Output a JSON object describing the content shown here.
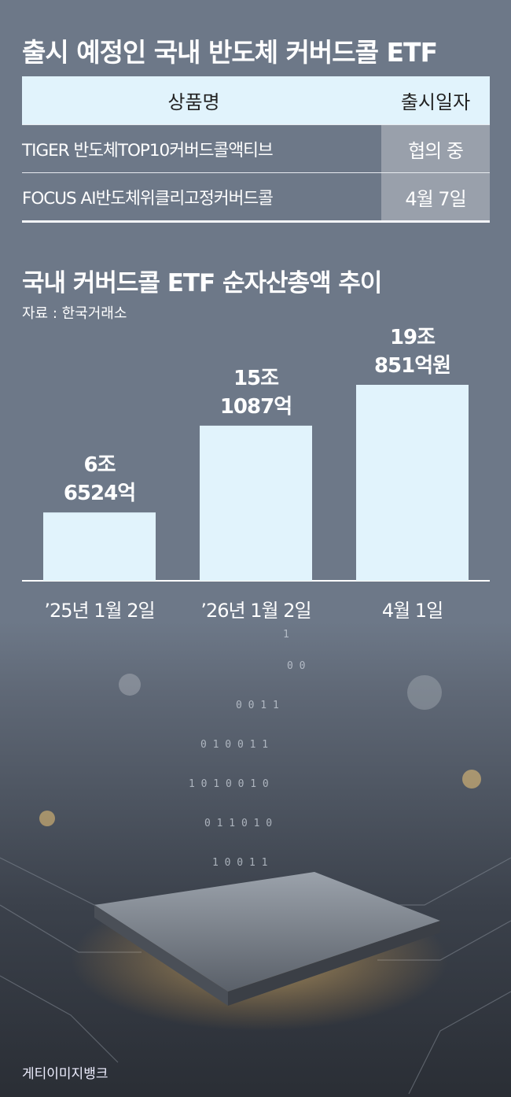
{
  "table_title": "출시 예정인 국내 반도체 커버드콜 ETF",
  "table": {
    "headers": [
      "상품명",
      "출시일자"
    ],
    "rows": [
      {
        "name": "TIGER 반도체TOP10커버드콜액티브",
        "date": "협의 중"
      },
      {
        "name": "FOCUS AI반도체위클리고정커버드콜",
        "date": "4월 7일"
      }
    ]
  },
  "chart_data": {
    "type": "bar",
    "title": "국내 커버드콜 ETF 순자산총액 추이",
    "source": "자료 : 한국거래소",
    "categories": [
      "’25년 1월 2일",
      "’26년 1월 2일",
      "4월 1일"
    ],
    "values": [
      6.6524,
      15.1087,
      19.0851
    ],
    "unit": "조원",
    "data_labels": [
      [
        "6조",
        "6524억"
      ],
      [
        "15조",
        "1087억"
      ],
      [
        "19조",
        "851억원"
      ]
    ],
    "ylim": [
      0,
      19.0851
    ],
    "grid": false,
    "bar_color": "#e1f3fc"
  },
  "credit": "게티이미지뱅크",
  "colors": {
    "background": "#6d7888",
    "header_bg": "#e1f3fc",
    "date_cell_bg": "#99a0ab"
  }
}
